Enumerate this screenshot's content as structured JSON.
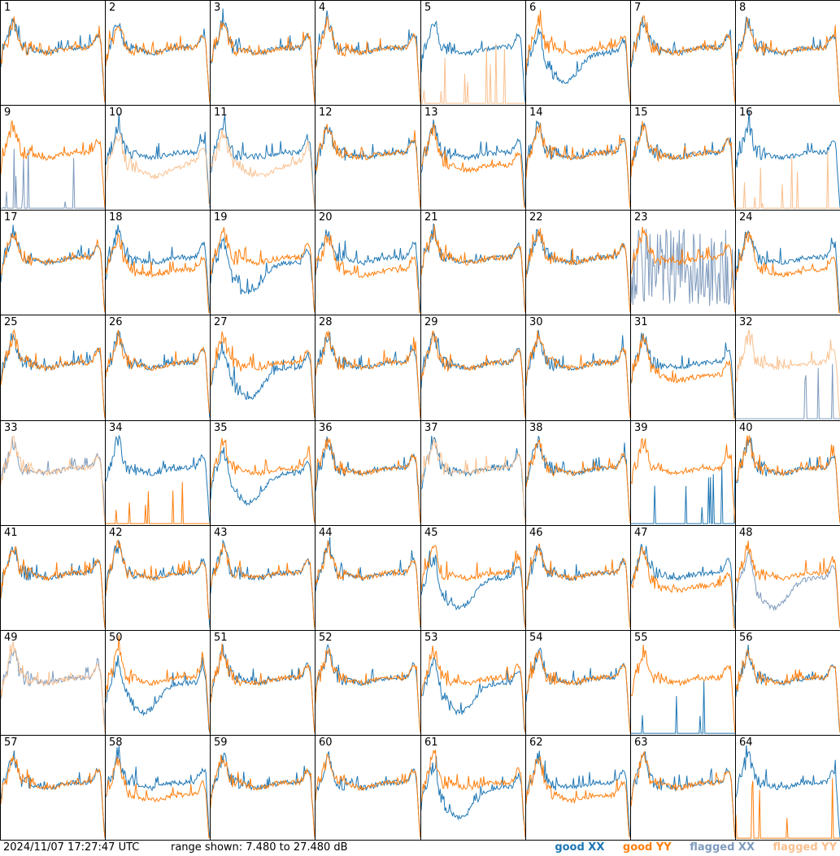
{
  "footer": {
    "timestamp": "2024/11/07 17:27:47 UTC",
    "range_text": "range shown: 7.480 to 27.480 dB"
  },
  "legend": [
    {
      "label": "good XX",
      "color": "#1f77b4"
    },
    {
      "label": "good YY",
      "color": "#ff7f0e"
    },
    {
      "label": "flagged XX",
      "color": "#7f9bbd"
    },
    {
      "label": "flagged YY",
      "color": "#f9c08f"
    }
  ],
  "chart_data": {
    "type": "line",
    "grid_rows": 8,
    "grid_cols": 8,
    "ylim": [
      7.48,
      27.48
    ],
    "yunit": "dB",
    "panels": [
      {
        "id": "1",
        "xx": "good",
        "yy": "good",
        "shape": "normal"
      },
      {
        "id": "2",
        "xx": "good",
        "yy": "good",
        "shape": "normal"
      },
      {
        "id": "3",
        "xx": "good",
        "yy": "good",
        "shape": "normal"
      },
      {
        "id": "4",
        "xx": "good",
        "yy": "good",
        "shape": "normal"
      },
      {
        "id": "5",
        "xx": "good",
        "yy": "flagged",
        "shape": "yy-dead"
      },
      {
        "id": "6",
        "xx": "good",
        "yy": "good",
        "shape": "xx-low"
      },
      {
        "id": "7",
        "xx": "good",
        "yy": "good",
        "shape": "normal"
      },
      {
        "id": "8",
        "xx": "good",
        "yy": "good",
        "shape": "normal"
      },
      {
        "id": "9",
        "xx": "flagged",
        "yy": "good",
        "shape": "xx-dead"
      },
      {
        "id": "10",
        "xx": "good",
        "yy": "flagged",
        "shape": "yy-low"
      },
      {
        "id": "11",
        "xx": "good",
        "yy": "flagged",
        "shape": "yy-low"
      },
      {
        "id": "12",
        "xx": "good",
        "yy": "good",
        "shape": "normal"
      },
      {
        "id": "13",
        "xx": "good",
        "yy": "good",
        "shape": "split"
      },
      {
        "id": "14",
        "xx": "good",
        "yy": "good",
        "shape": "normal"
      },
      {
        "id": "15",
        "xx": "good",
        "yy": "good",
        "shape": "normal"
      },
      {
        "id": "16",
        "xx": "good",
        "yy": "flagged",
        "shape": "yy-dead"
      },
      {
        "id": "17",
        "xx": "good",
        "yy": "good",
        "shape": "normal"
      },
      {
        "id": "18",
        "xx": "good",
        "yy": "good",
        "shape": "split"
      },
      {
        "id": "19",
        "xx": "good",
        "yy": "good",
        "shape": "xx-low"
      },
      {
        "id": "20",
        "xx": "good",
        "yy": "good",
        "shape": "split"
      },
      {
        "id": "21",
        "xx": "good",
        "yy": "good",
        "shape": "normal"
      },
      {
        "id": "22",
        "xx": "good",
        "yy": "good",
        "shape": "normal"
      },
      {
        "id": "23",
        "xx": "flagged",
        "yy": "good",
        "shape": "xx-noise"
      },
      {
        "id": "24",
        "xx": "good",
        "yy": "good",
        "shape": "split"
      },
      {
        "id": "25",
        "xx": "good",
        "yy": "good",
        "shape": "normal"
      },
      {
        "id": "26",
        "xx": "good",
        "yy": "good",
        "shape": "normal"
      },
      {
        "id": "27",
        "xx": "good",
        "yy": "good",
        "shape": "xx-low"
      },
      {
        "id": "28",
        "xx": "good",
        "yy": "good",
        "shape": "normal"
      },
      {
        "id": "29",
        "xx": "good",
        "yy": "good",
        "shape": "normal"
      },
      {
        "id": "30",
        "xx": "good",
        "yy": "good",
        "shape": "normal"
      },
      {
        "id": "31",
        "xx": "good",
        "yy": "good",
        "shape": "split"
      },
      {
        "id": "32",
        "xx": "flagged",
        "yy": "flagged",
        "shape": "xx-dead"
      },
      {
        "id": "33",
        "xx": "flagged",
        "yy": "flagged",
        "shape": "normal"
      },
      {
        "id": "34",
        "xx": "good",
        "yy": "good",
        "shape": "yy-dead"
      },
      {
        "id": "35",
        "xx": "good",
        "yy": "good",
        "shape": "xx-low"
      },
      {
        "id": "36",
        "xx": "good",
        "yy": "good",
        "shape": "normal"
      },
      {
        "id": "37",
        "xx": "good",
        "yy": "flagged",
        "shape": "normal"
      },
      {
        "id": "38",
        "xx": "good",
        "yy": "good",
        "shape": "normal"
      },
      {
        "id": "39",
        "xx": "good",
        "yy": "good",
        "shape": "xx-dead"
      },
      {
        "id": "40",
        "xx": "good",
        "yy": "good",
        "shape": "normal"
      },
      {
        "id": "41",
        "xx": "good",
        "yy": "good",
        "shape": "normal"
      },
      {
        "id": "42",
        "xx": "good",
        "yy": "good",
        "shape": "normal"
      },
      {
        "id": "43",
        "xx": "good",
        "yy": "good",
        "shape": "normal"
      },
      {
        "id": "44",
        "xx": "good",
        "yy": "good",
        "shape": "normal"
      },
      {
        "id": "45",
        "xx": "good",
        "yy": "good",
        "shape": "xx-low"
      },
      {
        "id": "46",
        "xx": "good",
        "yy": "good",
        "shape": "normal"
      },
      {
        "id": "47",
        "xx": "good",
        "yy": "good",
        "shape": "split"
      },
      {
        "id": "48",
        "xx": "flagged",
        "yy": "good",
        "shape": "xx-low"
      },
      {
        "id": "49",
        "xx": "flagged",
        "yy": "flagged",
        "shape": "normal"
      },
      {
        "id": "50",
        "xx": "good",
        "yy": "good",
        "shape": "xx-low"
      },
      {
        "id": "51",
        "xx": "good",
        "yy": "good",
        "shape": "normal"
      },
      {
        "id": "52",
        "xx": "good",
        "yy": "good",
        "shape": "normal"
      },
      {
        "id": "53",
        "xx": "good",
        "yy": "good",
        "shape": "xx-low"
      },
      {
        "id": "54",
        "xx": "good",
        "yy": "good",
        "shape": "normal"
      },
      {
        "id": "55",
        "xx": "good",
        "yy": "good",
        "shape": "xx-dead"
      },
      {
        "id": "56",
        "xx": "good",
        "yy": "good",
        "shape": "normal"
      },
      {
        "id": "57",
        "xx": "good",
        "yy": "good",
        "shape": "normal"
      },
      {
        "id": "58",
        "xx": "good",
        "yy": "good",
        "shape": "split"
      },
      {
        "id": "59",
        "xx": "good",
        "yy": "good",
        "shape": "normal"
      },
      {
        "id": "60",
        "xx": "good",
        "yy": "good",
        "shape": "normal"
      },
      {
        "id": "61",
        "xx": "good",
        "yy": "good",
        "shape": "xx-low"
      },
      {
        "id": "62",
        "xx": "good",
        "yy": "good",
        "shape": "split"
      },
      {
        "id": "63",
        "xx": "good",
        "yy": "good",
        "shape": "normal"
      },
      {
        "id": "64",
        "xx": "good",
        "yy": "good",
        "shape": "yy-dead"
      }
    ]
  }
}
